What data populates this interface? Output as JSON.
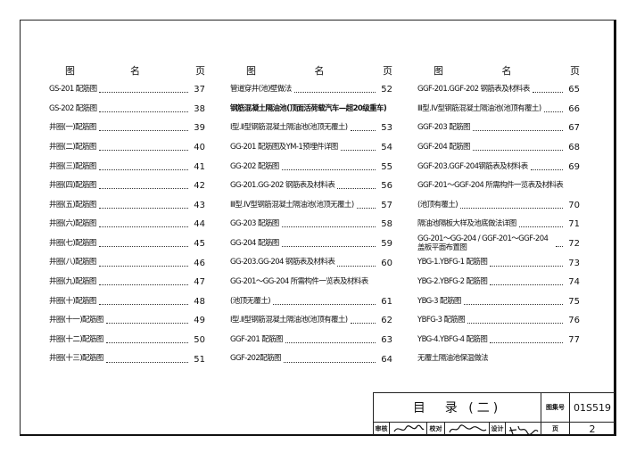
{
  "header": {
    "col_name_a": "图",
    "col_name_b": "名",
    "col_page": "页"
  },
  "columns": [
    [
      {
        "name": "GS-201 配筋图",
        "page": "37"
      },
      {
        "name": "GS-202 配筋图",
        "page": "38"
      },
      {
        "name": "井圈(一)配筋图",
        "page": "39"
      },
      {
        "name": "井圈(二)配筋图",
        "page": "40"
      },
      {
        "name": "井圈(三)配筋图",
        "page": "41"
      },
      {
        "name": "井圈(四)配筋图",
        "page": "42"
      },
      {
        "name": "井圈(五)配筋图",
        "page": "43"
      },
      {
        "name": "井圈(六)配筋图",
        "page": "44"
      },
      {
        "name": "井圈(七)配筋图",
        "page": "45"
      },
      {
        "name": "井圈(八)配筋图",
        "page": "46"
      },
      {
        "name": "井圈(九)配筋图",
        "page": "47"
      },
      {
        "name": "井圈(十)配筋图",
        "page": "48"
      },
      {
        "name": "井圈(十一)配筋图",
        "page": "49"
      },
      {
        "name": "井圈(十二)配筋图",
        "page": "50"
      },
      {
        "name": "井圈(十三)配筋图",
        "page": "51"
      }
    ],
    [
      {
        "name": "管道穿井(池)壁做法",
        "page": "52"
      },
      {
        "name": "钢筋混凝土隔油池(顶面活荷载汽车—超20级重车)",
        "page": "",
        "bold": true
      },
      {
        "name": "Ⅰ型.Ⅱ型钢筋混凝土隔油池(池顶无覆土)",
        "page": "53"
      },
      {
        "name": "GG-201 配筋图及YM-1预埋件详图",
        "page": "54"
      },
      {
        "name": "GG-202 配筋图",
        "page": "55"
      },
      {
        "name": "GG-201.GG-202 钢筋表及材料表",
        "page": "56"
      },
      {
        "name": "Ⅲ型.Ⅳ型钢筋混凝土隔油池(池顶无覆土)",
        "page": "57"
      },
      {
        "name": "GG-203 配筋图",
        "page": "58"
      },
      {
        "name": "GG-204 配筋图",
        "page": "59"
      },
      {
        "name": "GG-203.GG-204 钢筋表及材料表",
        "page": "60"
      },
      {
        "name": "GG-201～GG-204 所需构件一览表及材料表",
        "page": ""
      },
      {
        "name": "(池顶无覆土)",
        "page": "61"
      },
      {
        "name": "Ⅰ型.Ⅱ型钢筋混凝土隔油池(池顶有覆土)",
        "page": "62"
      },
      {
        "name": "GGF-201 配筋图",
        "page": "63"
      },
      {
        "name": "GGF-202配筋图",
        "page": "64"
      }
    ],
    [
      {
        "name": "GGF-201.GGF-202 钢筋表及材料表",
        "page": "65"
      },
      {
        "name": "Ⅲ型.Ⅳ型钢筋混凝土隔油池(池顶有覆土)",
        "page": "66"
      },
      {
        "name": "GGF-203 配筋图",
        "page": "67"
      },
      {
        "name": "GGF-204 配筋图",
        "page": "68"
      },
      {
        "name": "GGF-203.GGF-204钢筋表及材料表",
        "page": "69"
      },
      {
        "name": "GGF-201～GGF-204 所需构件一览表及材料表",
        "page": ""
      },
      {
        "name": "(池顶有覆土)",
        "page": "70"
      },
      {
        "name": "隔油池隔板大样及池底做法详图",
        "page": "71"
      },
      {
        "name": "GG-201～GG-204 / GGF-201～GGF-204 盖板平面布置图",
        "page": "72"
      },
      {
        "name": "YBG-1.YBFG-1 配筋图",
        "page": "73"
      },
      {
        "name": "YBG-2.YBFG-2 配筋图",
        "page": "74"
      },
      {
        "name": "YBG-3 配筋图",
        "page": "75"
      },
      {
        "name": "YBFG-3 配筋图",
        "page": "76"
      },
      {
        "name": "YBG-4.YBFG-4 配筋图",
        "page": "77"
      },
      {
        "name": "无覆土隔油池保温做法",
        "page": ""
      }
    ]
  ],
  "title_block": {
    "title": "目　录 (二)",
    "atlas_label": "图集号",
    "atlas_no": "01S519",
    "review_label": "审核",
    "check_label": "校对",
    "design_label": "设计",
    "page_label": "页",
    "page_no": "2"
  }
}
